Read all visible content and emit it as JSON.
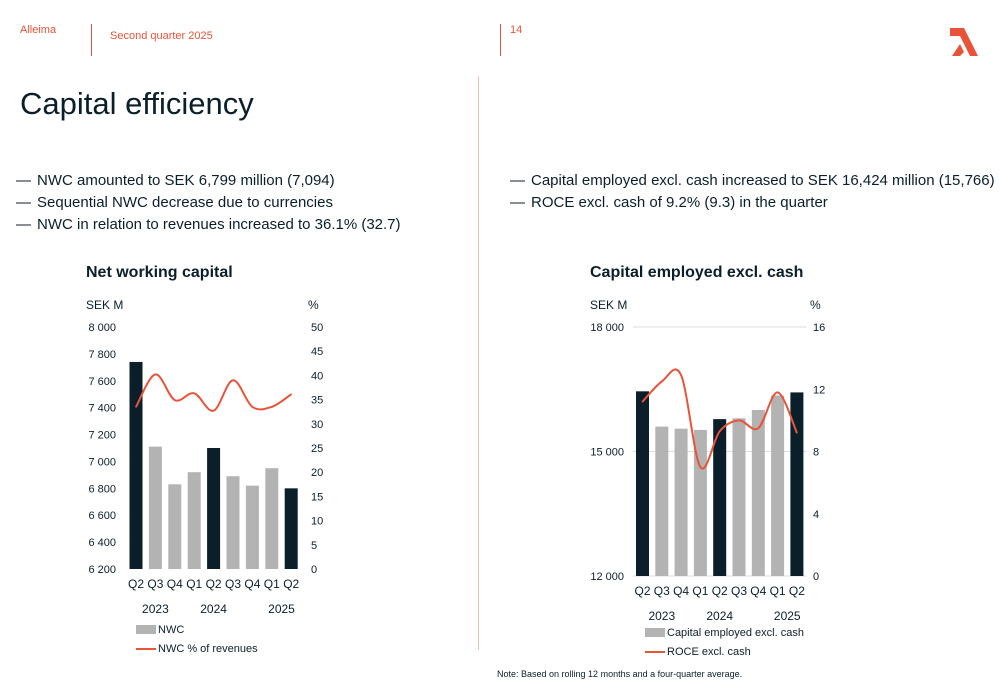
{
  "header": {
    "company": "Alleima",
    "period": "Second quarter 2025",
    "page_number": "14"
  },
  "slide_title": "Capital efficiency",
  "bullets_left": [
    "NWC amounted to SEK 6,799 million (7,094)",
    "Sequential NWC decrease due to currencies",
    "NWC in relation to revenues increased to 36.1% (32.7)"
  ],
  "bullets_right": [
    "Capital employed excl. cash increased to SEK 16,424 million (15,766)",
    "ROCE excl. cash of 9.2% (9.3) in the quarter"
  ],
  "bullet_dash": "—",
  "footnote": "Note: Based on rolling 12 months and a four-quarter average.",
  "colors": {
    "accent": "#e8543a",
    "dark_bar": "#0b1f2a",
    "grey_bar": "#b3b3b3",
    "text": "#0b1f2a"
  },
  "chart_data": [
    {
      "type": "bar",
      "title": "Net working capital",
      "ylabel_left": "SEK M",
      "ylabel_right": "%",
      "ylim_left": [
        6200,
        8000
      ],
      "ylim_right": [
        0,
        50
      ],
      "yticks_left": [
        "8 000",
        "7 800",
        "7 600",
        "7 400",
        "7 200",
        "7 000",
        "6 800",
        "6 600",
        "6 400",
        "6 200"
      ],
      "yticks_left_values": [
        8000,
        7800,
        7600,
        7400,
        7200,
        7000,
        6800,
        6600,
        6400,
        6200
      ],
      "yticks_right": [
        "50",
        "45",
        "40",
        "35",
        "30",
        "25",
        "20",
        "15",
        "10",
        "5",
        "0"
      ],
      "yticks_right_values": [
        50,
        45,
        40,
        35,
        30,
        25,
        20,
        15,
        10,
        5,
        0
      ],
      "categories": [
        "Q2",
        "Q3",
        "Q4",
        "Q1",
        "Q2",
        "Q3",
        "Q4",
        "Q1",
        "Q2"
      ],
      "year_labels": [
        "2023",
        "2024",
        "2025"
      ],
      "year_label_positions": [
        1,
        4,
        7.5
      ],
      "highlight": [
        true,
        false,
        false,
        false,
        true,
        false,
        false,
        false,
        true
      ],
      "series": [
        {
          "name": "NWC",
          "kind": "bar",
          "axis": "left",
          "values": [
            7740,
            7110,
            6830,
            6920,
            7100,
            6890,
            6820,
            6950,
            6800
          ]
        },
        {
          "name": "NWC % of revenues",
          "kind": "line",
          "axis": "right",
          "values": [
            33.5,
            40.2,
            34.9,
            36.3,
            32.7,
            39.0,
            33.5,
            33.5,
            36.1
          ]
        }
      ],
      "legend_position": "bottom-left",
      "grid": false
    },
    {
      "type": "bar",
      "title": "Capital employed excl. cash",
      "ylabel_left": "SEK M",
      "ylabel_right": "%",
      "ylim_left": [
        12000,
        18000
      ],
      "ylim_right": [
        0,
        16
      ],
      "yticks_left": [
        "18 000",
        "15 000",
        "12 000"
      ],
      "yticks_left_values": [
        18000,
        15000,
        12000
      ],
      "yticks_right": [
        "16",
        "12",
        "8",
        "4",
        "0"
      ],
      "yticks_right_values": [
        16,
        12,
        8,
        4,
        0
      ],
      "categories": [
        "Q2",
        "Q3",
        "Q4",
        "Q1",
        "Q2",
        "Q3",
        "Q4",
        "Q1",
        "Q2"
      ],
      "year_labels": [
        "2023",
        "2024",
        "2025"
      ],
      "year_label_positions": [
        1,
        4,
        7.5
      ],
      "highlight": [
        true,
        false,
        false,
        false,
        true,
        false,
        false,
        false,
        true
      ],
      "series": [
        {
          "name": "Capital employed excl. cash",
          "kind": "bar",
          "axis": "left",
          "values": [
            16450,
            15600,
            15550,
            15520,
            15780,
            15800,
            16000,
            16350,
            16424
          ]
        },
        {
          "name": "ROCE excl. cash",
          "kind": "line",
          "axis": "right",
          "values": [
            11.2,
            12.5,
            12.9,
            7.0,
            9.3,
            10.0,
            9.5,
            11.8,
            9.2
          ]
        }
      ],
      "legend_position": "bottom-left",
      "grid": true
    }
  ]
}
